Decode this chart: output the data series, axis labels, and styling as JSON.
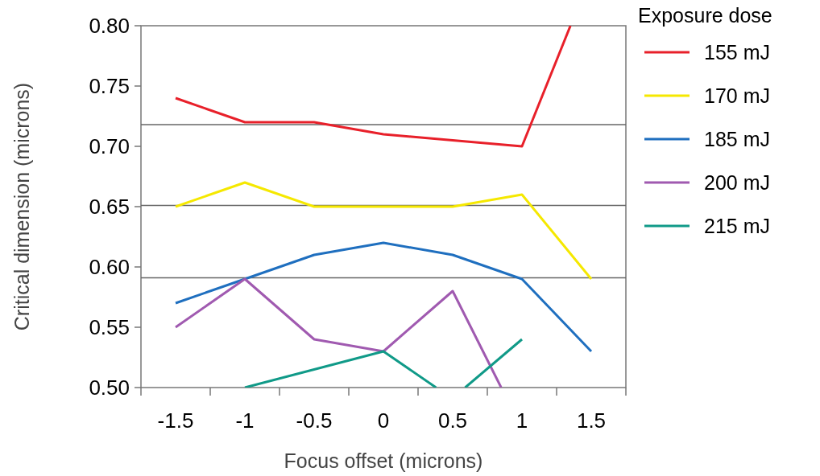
{
  "chart_data": {
    "type": "line",
    "xlabel": "Focus offset (microns)",
    "ylabel": "Critical dimension (microns)",
    "legend_title": "Exposure dose",
    "legend": "top right",
    "x": [
      -1.5,
      -1,
      -0.5,
      0,
      0.5,
      1,
      1.5
    ],
    "xlim": [
      -1.75,
      1.75
    ],
    "xticks": [
      {
        "value": -1.75,
        "label": null
      },
      -1.5,
      {
        "value": -1.25,
        "label": null
      },
      -1,
      {
        "value": -0.75,
        "label": null
      },
      -0.5,
      {
        "value": -0.25,
        "label": null
      },
      0,
      {
        "value": 0.25,
        "label": null
      },
      0.5,
      {
        "value": 0.75,
        "label": null
      },
      1,
      {
        "value": 1.25,
        "label": null
      },
      1.5,
      {
        "value": 1.75,
        "label": null
      }
    ],
    "ylim": [
      0.5,
      0.8
    ],
    "yticks": [
      {
        "value": 0.5,
        "label": "0.50"
      },
      0.55,
      {
        "value": 0.6,
        "label": "0.60"
      },
      0.65,
      {
        "value": 0.7,
        "label": "0.70"
      },
      0.75,
      {
        "value": 0.8,
        "label": "0.80"
      }
    ],
    "ref_lines": [
      {
        "axis": "y",
        "value": 0.718,
        "color": "#666666"
      },
      {
        "axis": "y",
        "value": 0.651,
        "color": "#666666"
      },
      {
        "axis": "y",
        "value": 0.591,
        "color": "#666666"
      }
    ],
    "series": [
      {
        "name": "155 mJ",
        "color": "#e8202a",
        "x": [
          -1.5,
          -1,
          -0.5,
          0,
          0.5,
          1,
          1.35
        ],
        "values": [
          0.74,
          0.72,
          0.72,
          0.71,
          0.705,
          0.7,
          0.8
        ]
      },
      {
        "name": "170 mJ",
        "color": "#f5e800",
        "values": [
          0.65,
          0.67,
          0.65,
          0.65,
          0.65,
          0.66,
          0.59
        ]
      },
      {
        "name": "185 mJ",
        "color": "#1f6fbf",
        "values": [
          0.57,
          0.59,
          0.61,
          0.62,
          0.61,
          0.59,
          0.53
        ]
      },
      {
        "name": "200 mJ",
        "color": "#a05ab0",
        "x": [
          -1.5,
          -1,
          -0.5,
          0,
          0.5,
          0.85
        ],
        "values": [
          0.55,
          0.59,
          0.54,
          0.53,
          0.58,
          0.5
        ]
      },
      {
        "name": "215 mJ",
        "color": "#109a88",
        "x": [
          -1,
          0,
          0.38,
          0.48,
          0.59,
          1
        ],
        "values": [
          0.5,
          0.53,
          0.5,
          null,
          0.5,
          0.54
        ]
      }
    ]
  }
}
